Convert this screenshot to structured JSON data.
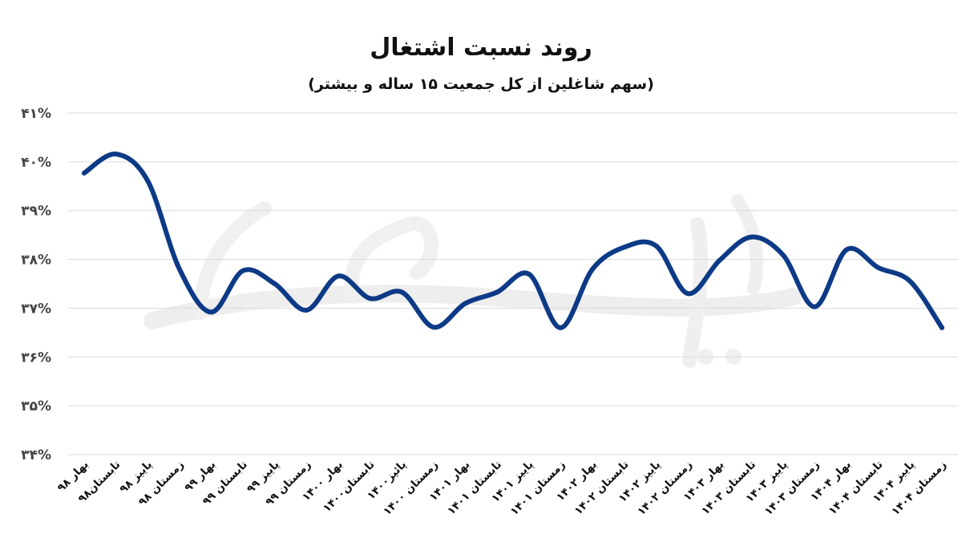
{
  "chart_data": {
    "type": "line",
    "title": "روند نسبت اشتغال",
    "subtitle": "(سهم شاغلین از کل جمعیت ۱۵ ساله و بیشتر)",
    "categories": [
      "بهار ۹۸",
      "تابستان۹۸",
      "پاییز ۹۸",
      "زمستان ۹۸",
      "بهار ۹۹",
      "تابستان ۹۹",
      "پاییز ۹۹",
      "زمستان ۹۹",
      "بهار ۱۴۰۰",
      "تابستان۱۴۰۰",
      "پائیز۱۴۰۰",
      "زمستان ۱۴۰۰",
      "بهار ۱۴۰۱",
      "تابستان ۱۴۰۱",
      "پاییز ۱۴۰۱",
      "زمستان ۱۴۰۱",
      "بهار ۱۴۰۲",
      "تابستان ۱۴۰۲",
      "پاییز ۱۴۰۲",
      "زمستان ۱۴۰۲",
      "بهار ۱۴۰۳",
      "تابستان ۱۴۰۳",
      "پاییز ۱۴۰۳",
      "زمستان ۱۴۰۳",
      "بهار ۱۴۰۴",
      "تابستان ۱۴۰۴",
      "پاییز ۱۴۰۴",
      "زمستان ۱۴۰۴"
    ],
    "values": [
      39.77,
      40.16,
      39.61,
      37.8,
      36.92,
      37.77,
      37.5,
      36.96,
      37.66,
      37.2,
      37.33,
      36.61,
      37.1,
      37.33,
      37.7,
      36.6,
      37.8,
      38.25,
      38.28,
      37.3,
      37.98,
      38.46,
      38.09,
      37.03,
      38.2,
      37.83,
      37.55,
      36.6
    ],
    "ylim": [
      34,
      41
    ],
    "yticks": [
      34,
      35,
      36,
      37,
      38,
      39,
      40,
      41
    ],
    "ytick_labels": [
      "۳۴%",
      "۳۵%",
      "۳۶%",
      "۳۷%",
      "۳۸%",
      "۳۹%",
      "۴۰%",
      "۴۱%"
    ],
    "grid": true,
    "line_color": "#0d3a86",
    "watermark": "دنیای اقتصاد"
  }
}
